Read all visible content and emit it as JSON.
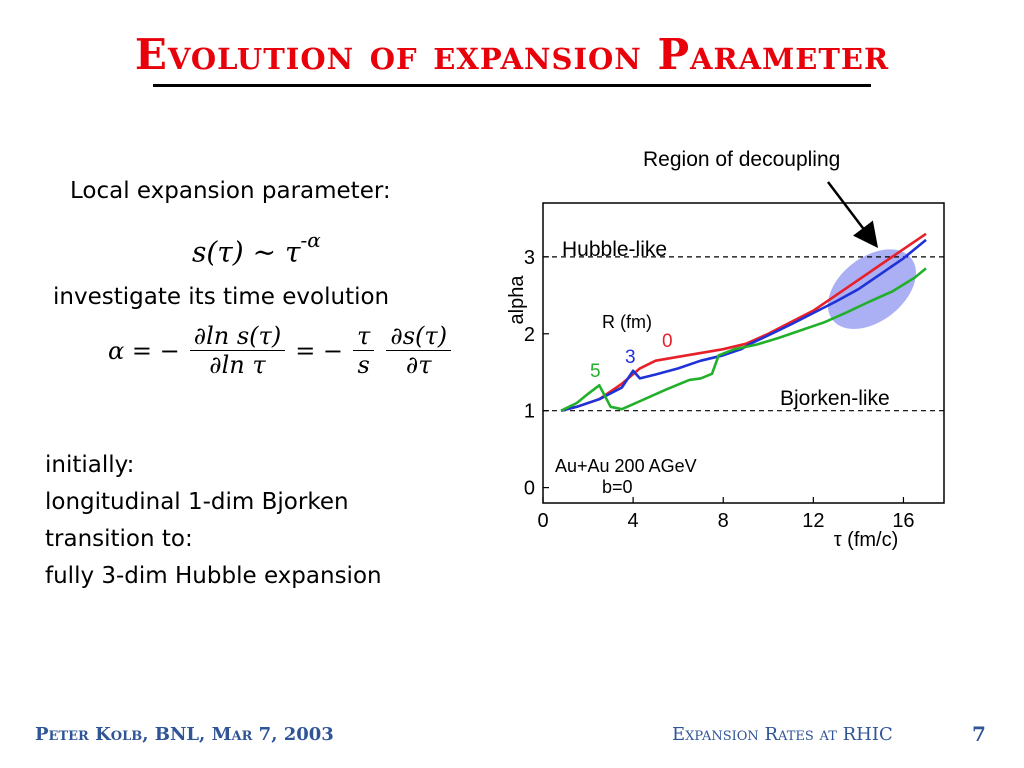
{
  "slide": {
    "title": "Evolution of expansion Parameter",
    "local_label": "Local expansion parameter:",
    "formula1_lhs": "s(τ) ~ τ",
    "formula1_exp": "-α",
    "investigate": "investigate its time evolution",
    "formula2_alpha": "α = −",
    "formula2_num1": "∂ln s(τ)",
    "formula2_den1": "∂ln τ",
    "formula2_mid": "= −",
    "formula2_num2": "τ",
    "formula2_den2": "s",
    "formula2_num3": "∂s(τ)",
    "formula2_den3": "∂τ",
    "lines": [
      "initially:",
      "longitudinal 1-dim Bjorken",
      "transition to:",
      "fully 3-dim Hubble expansion"
    ]
  },
  "footer": {
    "left": "Peter Kolb, BNL, Mar 7, 2003",
    "right": "Expansion Rates at RHIC",
    "page": "7"
  },
  "chart_data": {
    "type": "line",
    "xlabel": "τ (fm/c)",
    "ylabel": "alpha",
    "xlim": [
      0,
      17.8
    ],
    "ylim": [
      -0.2,
      3.7
    ],
    "xticks": [
      "0",
      "4",
      "8",
      "12",
      "16"
    ],
    "yticks": [
      "0",
      "1",
      "2",
      "3"
    ],
    "annotations": {
      "hubble": "Hubble-like",
      "bjorken": "Bjorken-like",
      "decoupling": "Region of decoupling",
      "r_label": "R (fm)",
      "system": "Au+Au 200 AGeV",
      "impact": "b=0"
    },
    "reference_lines": [
      1,
      3
    ],
    "series": [
      {
        "name": "0",
        "color": "#e8202a",
        "x": [
          0.8,
          1.5,
          2.5,
          3.5,
          4.3,
          5.0,
          6,
          8,
          9,
          10,
          11,
          12,
          13,
          14,
          15,
          16,
          17
        ],
        "y": [
          1.0,
          1.05,
          1.15,
          1.35,
          1.55,
          1.65,
          1.7,
          1.8,
          1.87,
          2.0,
          2.15,
          2.3,
          2.5,
          2.7,
          2.9,
          3.1,
          3.3
        ]
      },
      {
        "name": "3",
        "color": "#1f32d8",
        "x": [
          0.8,
          1.5,
          2.5,
          3.5,
          4.0,
          4.3,
          5,
          6,
          7,
          8,
          8.8,
          9.2,
          10,
          11,
          12,
          13,
          14,
          15,
          16,
          17
        ],
        "y": [
          1.0,
          1.05,
          1.15,
          1.3,
          1.52,
          1.42,
          1.47,
          1.55,
          1.65,
          1.72,
          1.8,
          1.87,
          1.98,
          2.12,
          2.27,
          2.42,
          2.58,
          2.78,
          2.98,
          3.22
        ]
      },
      {
        "name": "5",
        "color": "#22b02a",
        "x": [
          0.8,
          1.5,
          2.0,
          2.5,
          3.0,
          3.5,
          4.5,
          5.5,
          6.5,
          7.0,
          7.5,
          7.8,
          8.5,
          9.5,
          10.5,
          11.5,
          12.5,
          13.5,
          14.5,
          15.5,
          16.5,
          17.0
        ],
        "y": [
          1.0,
          1.1,
          1.22,
          1.33,
          1.05,
          1.02,
          1.15,
          1.28,
          1.4,
          1.42,
          1.48,
          1.72,
          1.8,
          1.86,
          1.95,
          2.05,
          2.15,
          2.28,
          2.42,
          2.55,
          2.73,
          2.85
        ]
      }
    ]
  }
}
